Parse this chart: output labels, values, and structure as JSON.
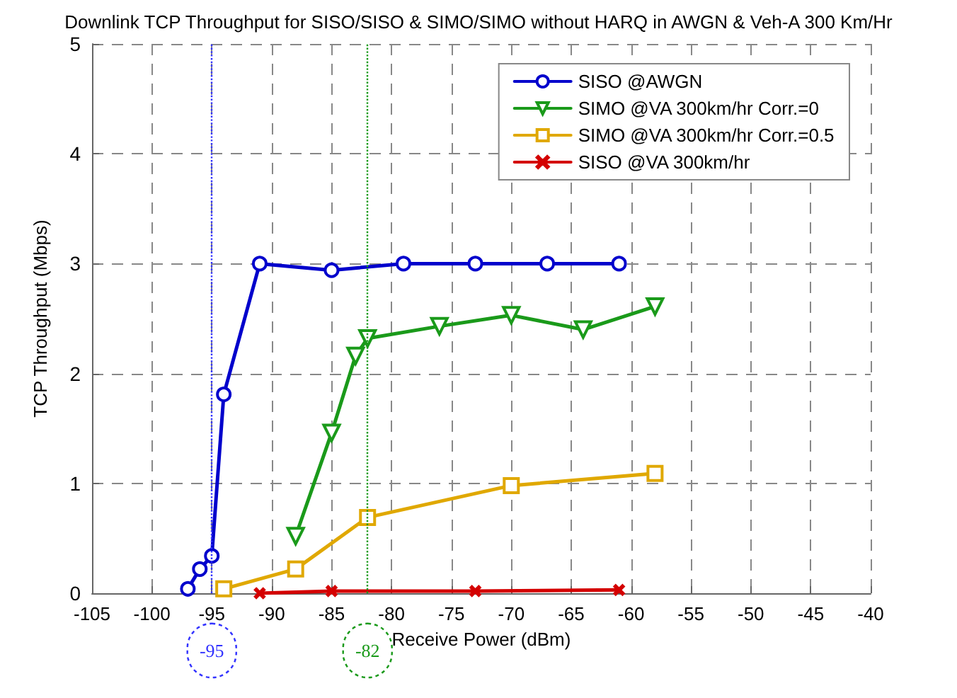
{
  "chart_data": {
    "type": "line",
    "title": "Downlink TCP Throughput for SISO/SISO & SIMO/SIMO without HARQ in AWGN & Veh-A 300 Km/Hr",
    "xlabel": "Receive Power (dBm)",
    "ylabel": "TCP Throughput (Mbps)",
    "xlim": [
      -105,
      -40
    ],
    "xticks": [
      -105,
      -100,
      -95,
      -90,
      -85,
      -80,
      -75,
      -70,
      -65,
      -60,
      -55,
      -50,
      -45,
      -40
    ],
    "ylim": [
      0,
      5
    ],
    "yticks": [
      0,
      1,
      2,
      3,
      4,
      5
    ],
    "grid": true,
    "legend": "top right",
    "line_style": "solid",
    "ref_lines": [
      {
        "axis": "x",
        "value": -95,
        "label": "-95",
        "color": "#3333ff",
        "line_style": "dotted"
      },
      {
        "axis": "x",
        "value": -82,
        "label": "-82",
        "color": "#1a9a1a",
        "line_style": "dotted"
      }
    ],
    "series": [
      {
        "name": "SISO @AWGN",
        "color": "#0000cc",
        "marker": "circle",
        "x": [
          -97,
          -96,
          -95,
          -94,
          -91,
          -85,
          -79,
          -73,
          -67,
          -61
        ],
        "values": [
          0.04,
          0.22,
          0.34,
          1.81,
          3.0,
          2.94,
          3.0,
          3.0,
          3.0,
          3.0
        ]
      },
      {
        "name": "SIMO @VA 300km/hr Corr.=0",
        "color": "#1a9a1a",
        "marker": "triangle",
        "x": [
          -88,
          -85,
          -83,
          -82,
          -76,
          -70,
          -64,
          -58
        ],
        "values": [
          0.52,
          1.46,
          2.16,
          2.32,
          2.43,
          2.53,
          2.4,
          2.61
        ]
      },
      {
        "name": "SIMO @VA 300km/hr Corr.=0.5",
        "color": "#e0a800",
        "marker": "square",
        "x": [
          -94,
          -88,
          -82,
          -70,
          -58
        ],
        "values": [
          0.04,
          0.22,
          0.69,
          0.98,
          1.09
        ]
      },
      {
        "name": "SISO @VA 300km/hr",
        "color": "#d40000",
        "marker": "cross",
        "x": [
          -91,
          -85,
          -73,
          -61
        ],
        "values": [
          0,
          0.02,
          0.02,
          0.03
        ]
      }
    ]
  }
}
